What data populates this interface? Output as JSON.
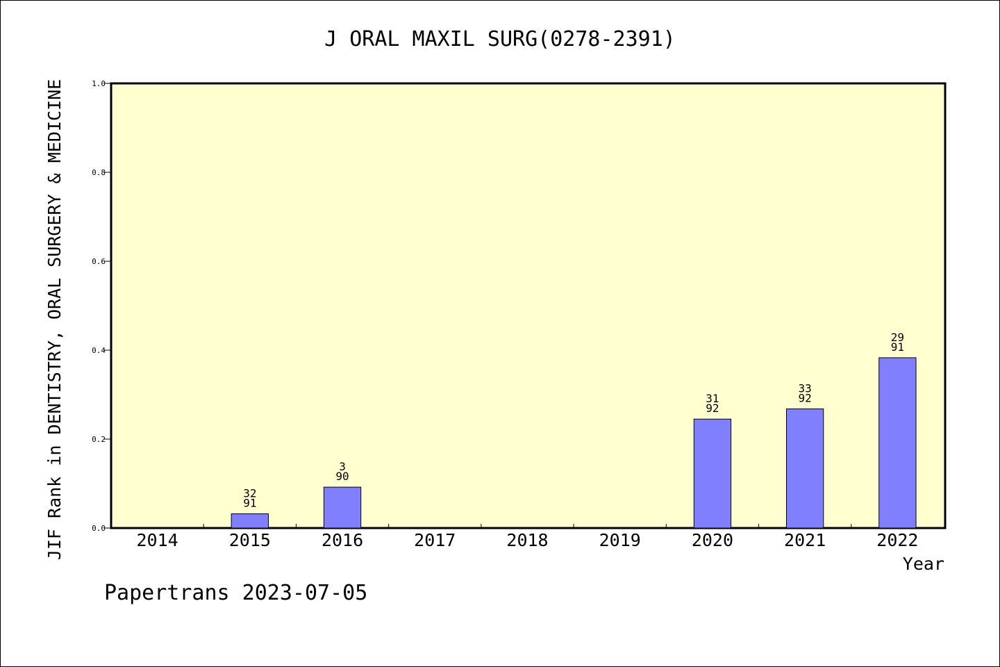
{
  "chart_data": {
    "type": "bar",
    "title": "J ORAL MAXIL SURG(0278-2391)",
    "xlabel": "Year",
    "ylabel": "JIF Rank in DENTISTRY, ORAL SURGERY & MEDICINE",
    "categories": [
      "2014",
      "2015",
      "2016",
      "2017",
      "2018",
      "2019",
      "2020",
      "2021",
      "2022"
    ],
    "values": [
      null,
      0.032,
      0.092,
      null,
      null,
      null,
      0.245,
      0.268,
      0.383
    ],
    "bar_labels": [
      null,
      {
        "rank": "32",
        "total": "91"
      },
      {
        "rank": "3",
        "total": "90"
      },
      null,
      null,
      null,
      {
        "rank": "31",
        "total": "92"
      },
      {
        "rank": "33",
        "total": "92"
      },
      {
        "rank": "29",
        "total": "91"
      }
    ],
    "ylim": [
      0,
      1.0
    ],
    "yticks": [
      "0.0",
      "0.2",
      "0.4",
      "0.6",
      "0.8",
      "1.0"
    ],
    "grid": false,
    "footer": "Papertrans 2023-07-05",
    "colors": {
      "plot_background": "#ffffd0",
      "bar_fill": "#8080ff",
      "bar_stroke": "#000000",
      "axis": "#000000"
    }
  }
}
